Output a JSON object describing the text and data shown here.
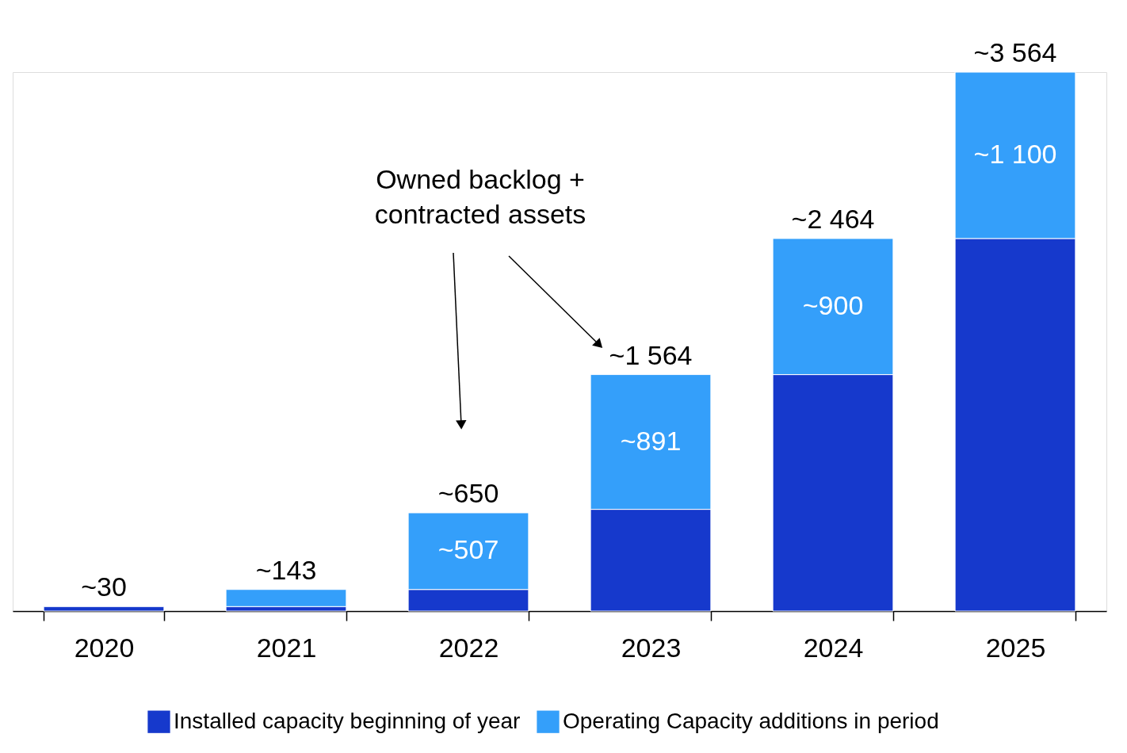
{
  "chart_data": {
    "type": "bar",
    "stacked": true,
    "categories": [
      "2020",
      "2021",
      "2022",
      "2023",
      "2024",
      "2025"
    ],
    "series": [
      {
        "name": "Installed capacity beginning of year",
        "color": "#1639cc",
        "values": [
          30,
          30,
          143,
          673,
          1564,
          2464
        ]
      },
      {
        "name": "Operating Capacity additions in period",
        "color": "#349ffa",
        "values": [
          null,
          113,
          507,
          891,
          900,
          1100
        ],
        "value_labels": [
          null,
          null,
          "~507",
          "~891",
          "~900",
          "~1 100"
        ]
      }
    ],
    "totals": [
      "~30",
      "~143",
      "~650",
      "~1 564",
      "~2 464",
      "~3 564"
    ],
    "annotations": [
      "Owned backlog + contracted assets"
    ],
    "legend": "bottom right",
    "grid": false
  }
}
